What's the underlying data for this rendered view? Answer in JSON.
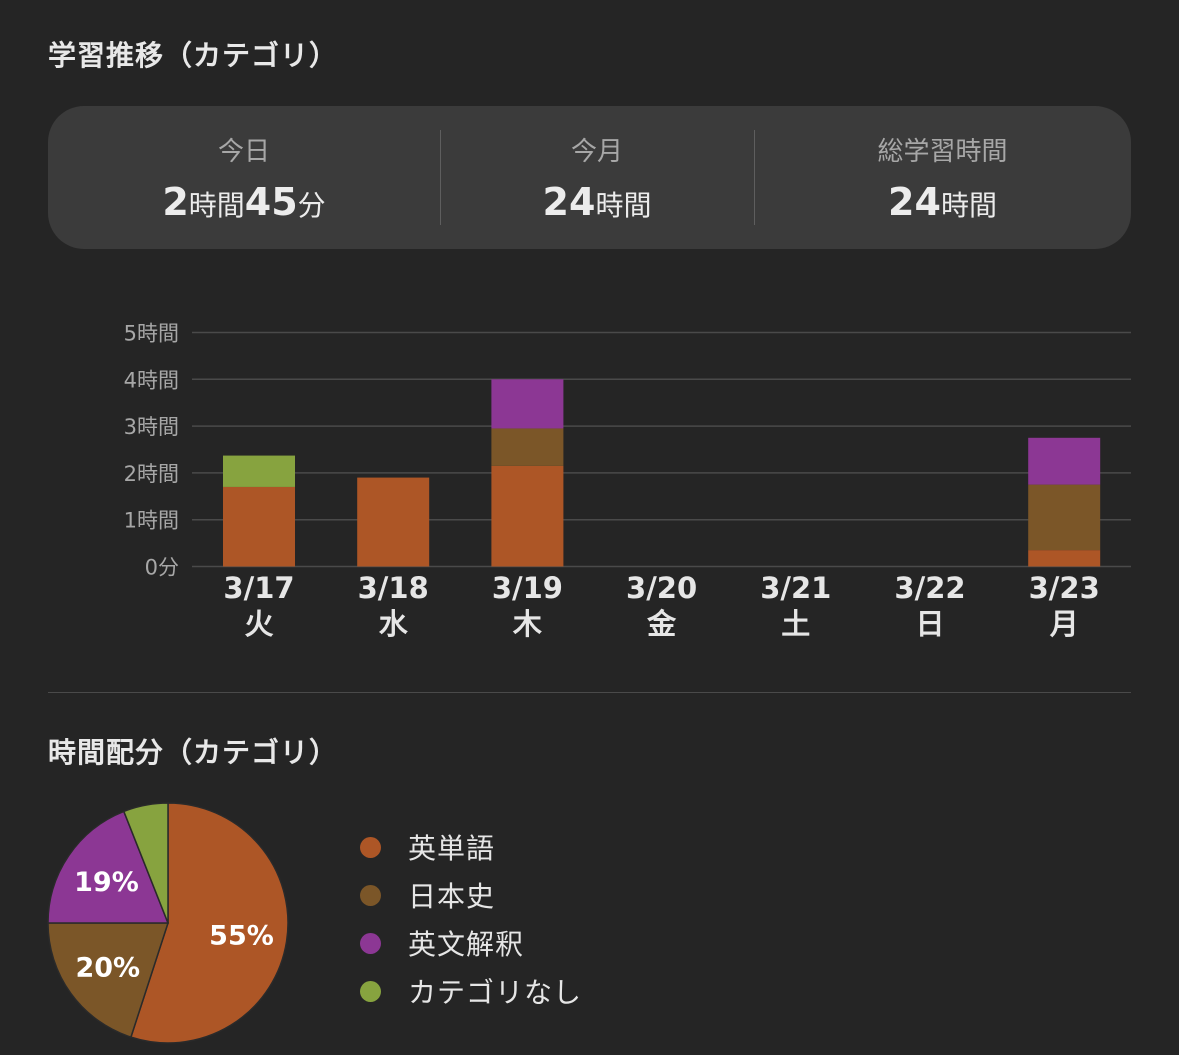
{
  "trend_title": "学習推移（カテゴリ）",
  "distribution_title": "時間配分（カテゴリ）",
  "summary": {
    "today": {
      "label": "今日",
      "h_num": "2",
      "h_unit": "時間",
      "m_num": "45",
      "m_unit": "分"
    },
    "month": {
      "label": "今月",
      "h_num": "24",
      "h_unit": "時間"
    },
    "total": {
      "label": "総学習時間",
      "h_num": "24",
      "h_unit": "時間"
    }
  },
  "colors": {
    "eitango": "#ad5626",
    "nihonshi": "#7b5628",
    "eibun": "#8c3794",
    "none": "#87a33f",
    "grid": "#4a4a4a",
    "axis_text": "#a7a7a7",
    "tick_text": "#e6e6e6"
  },
  "chart_data": [
    {
      "type": "bar",
      "stacked": true,
      "categories": [
        "3/17",
        "3/18",
        "3/19",
        "3/20",
        "3/21",
        "3/22",
        "3/23"
      ],
      "weekdays": [
        "火",
        "水",
        "木",
        "金",
        "土",
        "日",
        "月"
      ],
      "y_ticks": [
        "0分",
        "1時間",
        "2時間",
        "3時間",
        "4時間",
        "5時間"
      ],
      "ylim": [
        0,
        5
      ],
      "grid": true,
      "series": [
        {
          "key": "eitango",
          "values": [
            1.7,
            1.9,
            2.15,
            0,
            0,
            0,
            0.35
          ]
        },
        {
          "key": "nihonshi",
          "values": [
            0,
            0,
            0.8,
            0,
            0,
            0,
            1.4
          ]
        },
        {
          "key": "eibun",
          "values": [
            0,
            0,
            1.05,
            0,
            0,
            0,
            1.0
          ]
        },
        {
          "key": "none",
          "values": [
            0.67,
            0,
            0,
            0,
            0,
            0,
            0
          ]
        }
      ]
    },
    {
      "type": "pie",
      "slices": [
        {
          "key": "eitango",
          "name": "英単語",
          "value": 55,
          "label": "55%"
        },
        {
          "key": "nihonshi",
          "name": "日本史",
          "value": 20,
          "label": "20%"
        },
        {
          "key": "eibun",
          "name": "英文解釈",
          "value": 19,
          "label": "19%"
        },
        {
          "key": "none",
          "name": "カテゴリなし",
          "value": 6,
          "label": ""
        }
      ]
    }
  ]
}
